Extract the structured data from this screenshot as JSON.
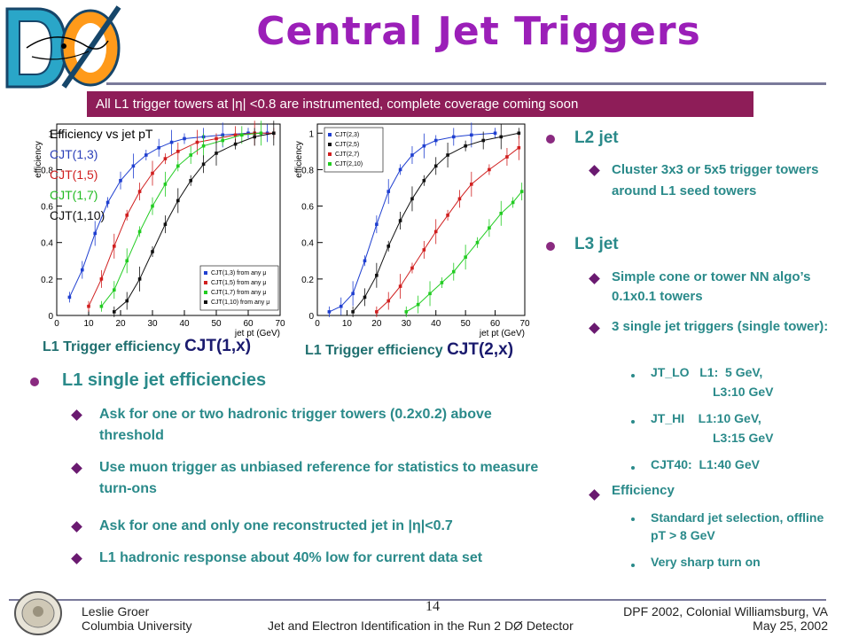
{
  "title": "Central Jet Triggers",
  "banner": "All L1 trigger towers at |η| <0.8 are instrumented,  complete coverage coming soon",
  "chart_data": [
    {
      "type": "scatter",
      "title": "Efficiency vs jet pT",
      "ylabel": "efficiency",
      "xlabel": "jet pt (GeV)",
      "xlim": [
        0,
        70
      ],
      "ylim": [
        0,
        1.05
      ],
      "xticks": [
        "0",
        "10",
        "20",
        "30",
        "40",
        "50",
        "60",
        "70"
      ],
      "yticks": [
        "0",
        "0.2",
        "0.4",
        "0.6",
        "0.8",
        "1"
      ],
      "legend_in_plot": [
        "CJT(1,3) from any μ",
        "CJT(1,5) from any μ",
        "CJT(1,7) from any μ",
        "CJT(1,10) from any μ"
      ],
      "series": [
        {
          "name": "CJT(1,3)",
          "color": "#1f3fd0",
          "x": [
            4,
            8,
            12,
            16,
            20,
            24,
            28,
            32,
            36,
            40,
            46,
            52,
            60,
            66
          ],
          "y": [
            0.1,
            0.25,
            0.45,
            0.62,
            0.74,
            0.82,
            0.88,
            0.92,
            0.95,
            0.97,
            0.98,
            0.99,
            1,
            1
          ]
        },
        {
          "name": "CJT(1,5)",
          "color": "#d01f1f",
          "x": [
            10,
            14,
            18,
            22,
            26,
            30,
            34,
            38,
            44,
            50,
            56,
            62,
            68
          ],
          "y": [
            0.05,
            0.2,
            0.38,
            0.55,
            0.68,
            0.78,
            0.86,
            0.9,
            0.95,
            0.97,
            0.99,
            1,
            1
          ]
        },
        {
          "name": "CJT(1,7)",
          "color": "#22cc22",
          "x": [
            14,
            18,
            22,
            26,
            30,
            34,
            38,
            42,
            46,
            52,
            58,
            64
          ],
          "y": [
            0.05,
            0.14,
            0.3,
            0.46,
            0.6,
            0.72,
            0.82,
            0.88,
            0.93,
            0.96,
            0.99,
            1
          ]
        },
        {
          "name": "CJT(1,10)",
          "color": "#111111",
          "x": [
            18,
            22,
            26,
            30,
            34,
            38,
            42,
            46,
            50,
            56,
            62,
            68
          ],
          "y": [
            0.02,
            0.08,
            0.2,
            0.35,
            0.5,
            0.63,
            0.74,
            0.83,
            0.89,
            0.94,
            0.98,
            1
          ]
        }
      ]
    },
    {
      "type": "scatter",
      "ylabel": "efficiency",
      "xlabel": "jet pt (GeV)",
      "xlim": [
        0,
        70
      ],
      "ylim": [
        0,
        1.05
      ],
      "xticks": [
        "0",
        "10",
        "20",
        "30",
        "40",
        "50",
        "60",
        "70"
      ],
      "yticks": [
        "0",
        "0.2",
        "0.4",
        "0.6",
        "0.8",
        "1"
      ],
      "legend_in_plot": [
        "CJT(2,3)",
        "CJT(2,5)",
        "CJT(2,7)",
        "CJT(2,10)"
      ],
      "series": [
        {
          "name": "CJT(2,3)",
          "color": "#1f3fd0",
          "x": [
            4,
            8,
            12,
            16,
            20,
            24,
            28,
            32,
            36,
            40,
            46,
            52,
            60
          ],
          "y": [
            0.02,
            0.05,
            0.12,
            0.3,
            0.5,
            0.68,
            0.8,
            0.88,
            0.93,
            0.96,
            0.98,
            0.99,
            1
          ]
        },
        {
          "name": "CJT(2,5)",
          "color": "#111111",
          "x": [
            12,
            16,
            20,
            24,
            28,
            32,
            36,
            40,
            44,
            50,
            56,
            62,
            68
          ],
          "y": [
            0.02,
            0.1,
            0.22,
            0.38,
            0.52,
            0.64,
            0.74,
            0.82,
            0.88,
            0.93,
            0.96,
            0.98,
            1
          ]
        },
        {
          "name": "CJT(2,7)",
          "color": "#d01f1f",
          "x": [
            20,
            24,
            28,
            32,
            36,
            40,
            44,
            48,
            52,
            58,
            64,
            68
          ],
          "y": [
            0.02,
            0.08,
            0.16,
            0.26,
            0.36,
            0.46,
            0.55,
            0.64,
            0.72,
            0.8,
            0.87,
            0.92
          ]
        },
        {
          "name": "CJT(2,10)",
          "color": "#22cc22",
          "x": [
            30,
            34,
            38,
            42,
            46,
            50,
            54,
            58,
            62,
            66,
            69
          ],
          "y": [
            0.02,
            0.06,
            0.12,
            0.18,
            0.24,
            0.32,
            0.4,
            0.48,
            0.56,
            0.62,
            0.68
          ]
        }
      ]
    }
  ],
  "plot1": {
    "caption_pre": "L1 Trigger efficiency ",
    "caption_bold": "CJT(1,x)",
    "legend": {
      "title": "Efficiency vs jet pT",
      "items": [
        "CJT(1,3)",
        "CJT(1,5)",
        "CJT(1,7)",
        "CJT(1,10)"
      ],
      "colors": [
        "#1f3fd0",
        "#d01f1f",
        "#22cc22",
        "#111111"
      ]
    }
  },
  "plot2": {
    "caption_pre": "L1 Trigger efficiency ",
    "caption_bold": "CJT(2,x)"
  },
  "left_list": {
    "heading": "L1 single jet efficiencies",
    "items": [
      "Ask for one or two hadronic trigger towers (0.2x0.2) above threshold",
      "Use muon trigger as unbiased reference for statistics to measure turn-ons",
      "Ask for one and only one reconstructed jet in |η|<0.7",
      "L1 hadronic response about 40% low for current data set"
    ]
  },
  "right_list": {
    "l2": "L2 jet",
    "l2_items": [
      "Cluster 3x3 or 5x5 trigger towers around L1 seed towers"
    ],
    "l3": "L3 jet",
    "l3_items": [
      "Simple cone or tower NN algo’s 0.1x0.1 towers",
      "3 single jet triggers (single tower):"
    ],
    "triggers": [
      {
        "line1": "JT_LO   L1:  5 GeV,",
        "line2": "L3:10 GeV"
      },
      {
        "line1": "JT_HI    L1:10 GeV,",
        "line2": "L3:15 GeV"
      },
      {
        "line1": "CJT40:  L1:40 GeV",
        "line2": ""
      }
    ],
    "eff": "Efficiency",
    "eff_items": [
      "Standard jet selection, offline pT > 8 GeV",
      "Very sharp turn on"
    ]
  },
  "footer": {
    "page": "14",
    "author": "Leslie Groer",
    "affil": "Columbia University",
    "conf": "DPF 2002, Colonial Williamsburg, VA",
    "talk": "Jet and Electron Identification in the Run 2 DØ Detector",
    "date": "May 25, 2002"
  }
}
